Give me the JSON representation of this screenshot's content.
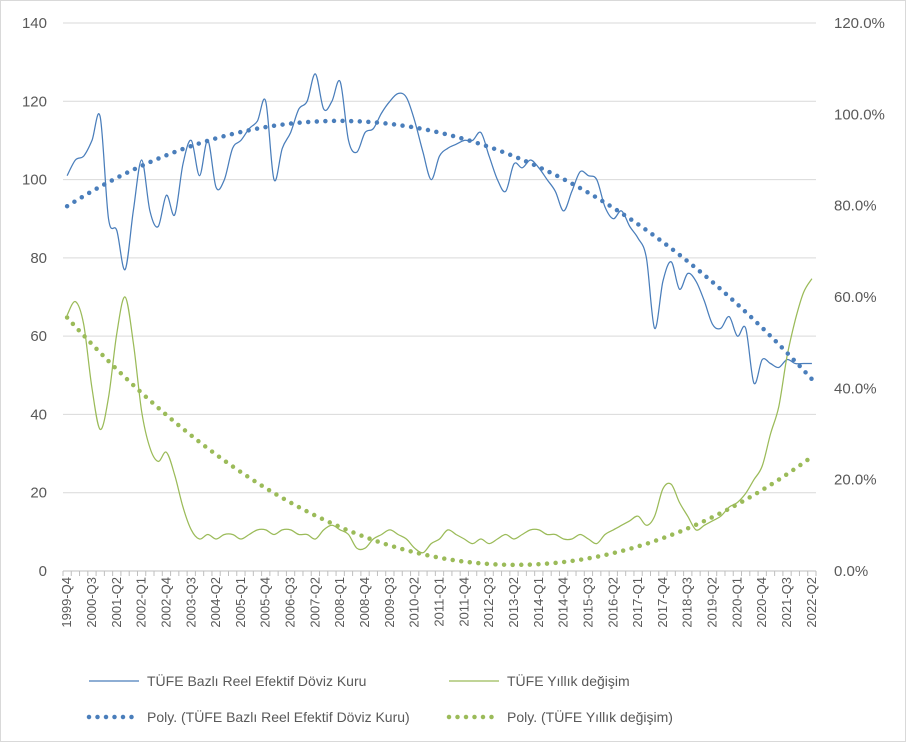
{
  "chart_data": {
    "type": "line",
    "categories": [
      "1999-Q4",
      "2000-Q1",
      "2000-Q2",
      "2000-Q3",
      "2000-Q4",
      "2001-Q1",
      "2001-Q2",
      "2001-Q3",
      "2001-Q4",
      "2002-Q1",
      "2002-Q2",
      "2002-Q3",
      "2002-Q4",
      "2003-Q1",
      "2003-Q2",
      "2003-Q3",
      "2003-Q4",
      "2004-Q1",
      "2004-Q2",
      "2004-Q3",
      "2004-Q4",
      "2005-Q1",
      "2005-Q2",
      "2005-Q3",
      "2005-Q4",
      "2006-Q1",
      "2006-Q2",
      "2006-Q3",
      "2006-Q4",
      "2007-Q1",
      "2007-Q2",
      "2007-Q3",
      "2007-Q4",
      "2008-Q1",
      "2008-Q2",
      "2008-Q3",
      "2008-Q4",
      "2009-Q1",
      "2009-Q2",
      "2009-Q3",
      "2009-Q4",
      "2010-Q1",
      "2010-Q2",
      "2010-Q3",
      "2010-Q4",
      "2011-Q1",
      "2011-Q2",
      "2011-Q3",
      "2011-Q4",
      "2012-Q1",
      "2012-Q2",
      "2012-Q3",
      "2012-Q4",
      "2013-Q1",
      "2013-Q2",
      "2013-Q3",
      "2013-Q4",
      "2014-Q1",
      "2014-Q2",
      "2014-Q3",
      "2014-Q4",
      "2015-Q1",
      "2015-Q2",
      "2015-Q3",
      "2015-Q4",
      "2016-Q1",
      "2016-Q2",
      "2016-Q3",
      "2016-Q4",
      "2017-Q1",
      "2017-Q2",
      "2017-Q3",
      "2017-Q4",
      "2018-Q1",
      "2018-Q2",
      "2018-Q3",
      "2018-Q4",
      "2019-Q1",
      "2019-Q2",
      "2019-Q3",
      "2019-Q4",
      "2020-Q1",
      "2020-Q2",
      "2020-Q3",
      "2020-Q4",
      "2021-Q1",
      "2021-Q2",
      "2021-Q3",
      "2021-Q4",
      "2022-Q1",
      "2022-Q2"
    ],
    "x_tick_labels": [
      "1999-Q4",
      "2000-Q3",
      "2001-Q2",
      "2002-Q1",
      "2002-Q4",
      "2003-Q3",
      "2004-Q2",
      "2005-Q1",
      "2005-Q4",
      "2006-Q3",
      "2007-Q2",
      "2008-Q1",
      "2008-Q4",
      "2009-Q3",
      "2010-Q2",
      "2011-Q1",
      "2011-Q4",
      "2012-Q3",
      "2013-Q2",
      "2014-Q1",
      "2014-Q4",
      "2015-Q3",
      "2016-Q2",
      "2017-Q1",
      "2017-Q4",
      "2018-Q3",
      "2019-Q2",
      "2020-Q1",
      "2020-Q4",
      "2021-Q3",
      "2022-Q2"
    ],
    "y_left": {
      "min": 0,
      "max": 140,
      "ticks": [
        "0",
        "20",
        "40",
        "60",
        "80",
        "100",
        "120",
        "140"
      ]
    },
    "y_right": {
      "min": 0,
      "max": 1.2,
      "ticks": [
        "0.0%",
        "20.0%",
        "40.0%",
        "60.0%",
        "80.0%",
        "100.0%",
        "120.0%"
      ]
    },
    "grid": true,
    "legend_position": "bottom",
    "series": [
      {
        "name": "TÜFE Bazlı Reel Efektif Döviz Kuru",
        "axis": "left",
        "style": "line",
        "color": "#4a7ebb",
        "values": [
          101,
          105,
          106,
          110,
          116,
          90,
          87,
          77,
          92,
          105,
          92,
          88,
          96,
          91,
          104,
          110,
          101,
          110,
          98,
          100,
          108,
          110,
          113,
          115,
          120,
          100,
          108,
          112,
          118,
          120,
          127,
          118,
          120,
          125,
          110,
          107,
          112,
          113,
          117,
          120,
          122,
          121,
          115,
          107,
          100,
          106,
          108,
          109,
          110,
          110,
          112,
          106,
          100,
          97,
          104,
          103,
          105,
          103,
          100,
          97,
          92,
          97,
          102,
          101,
          100,
          93,
          90,
          92,
          88,
          85,
          80,
          62,
          74,
          79,
          72,
          76,
          74,
          69,
          63,
          62,
          65,
          60,
          62,
          48,
          54,
          53,
          52,
          54,
          53,
          53,
          53
        ],
        "values_note": ""
      },
      {
        "name": "TÜFE Yıllık değişim",
        "axis": "right",
        "style": "line",
        "color": "#9bbb59",
        "values": [
          0.56,
          0.59,
          0.54,
          0.4,
          0.31,
          0.38,
          0.52,
          0.6,
          0.5,
          0.35,
          0.27,
          0.24,
          0.26,
          0.21,
          0.14,
          0.09,
          0.07,
          0.08,
          0.07,
          0.08,
          0.08,
          0.07,
          0.08,
          0.09,
          0.09,
          0.08,
          0.09,
          0.09,
          0.08,
          0.08,
          0.07,
          0.09,
          0.1,
          0.09,
          0.08,
          0.05,
          0.05,
          0.07,
          0.08,
          0.09,
          0.08,
          0.07,
          0.05,
          0.04,
          0.06,
          0.07,
          0.09,
          0.08,
          0.07,
          0.06,
          0.07,
          0.06,
          0.07,
          0.08,
          0.07,
          0.08,
          0.09,
          0.09,
          0.08,
          0.08,
          0.07,
          0.07,
          0.08,
          0.07,
          0.06,
          0.08,
          0.09,
          0.1,
          0.11,
          0.12,
          0.1,
          0.12,
          0.18,
          0.19,
          0.15,
          0.12,
          0.09,
          0.1,
          0.11,
          0.12,
          0.14,
          0.15,
          0.17,
          0.2,
          0.23,
          0.3,
          0.36,
          0.47,
          0.55,
          0.61,
          0.64
        ]
      },
      {
        "name": "Poly. (TÜFE Bazlı Reel Efektif Döviz Kuru)",
        "axis": "left",
        "style": "dotted",
        "color": "#4a7ebb",
        "poly_points": [
          [
            0,
            93.2
          ],
          [
            45,
            112
          ],
          [
            90,
            49
          ]
        ]
      },
      {
        "name": "Poly. (TÜFE Yıllık değişim)",
        "axis": "right",
        "style": "dotted",
        "color": "#9bbb59",
        "poly_points": [
          [
            0,
            0.555
          ],
          [
            45,
            0.029
          ],
          [
            90,
            0.25
          ]
        ]
      }
    ]
  }
}
